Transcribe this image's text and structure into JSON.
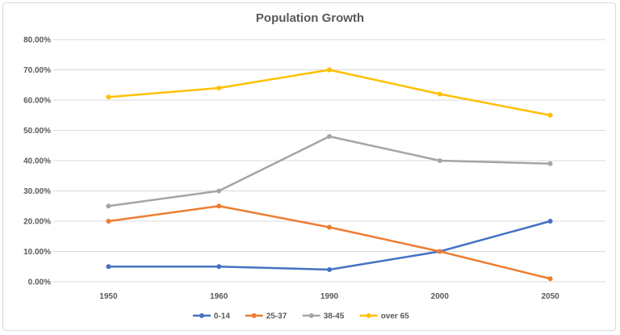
{
  "chart_data": {
    "type": "line",
    "title": "Population Growth",
    "categories": [
      "1950",
      "1960",
      "1990",
      "2000",
      "2050"
    ],
    "yticks": [
      "0.00%",
      "10.00%",
      "20.00%",
      "30.00%",
      "40.00%",
      "50.00%",
      "60.00%",
      "70.00%",
      "80.00%"
    ],
    "ylim": [
      0,
      80
    ],
    "grid": true,
    "legend_position": "bottom",
    "series": [
      {
        "name": "0-14",
        "color": "#4472C4",
        "values": [
          5,
          5,
          4,
          10,
          20
        ]
      },
      {
        "name": "25-37",
        "color": "#ED7D31",
        "values": [
          20,
          25,
          18,
          10,
          1
        ]
      },
      {
        "name": "38-45",
        "color": "#A5A5A5",
        "values": [
          25,
          30,
          48,
          40,
          39
        ]
      },
      {
        "name": "over 65",
        "color": "#FFC000",
        "values": [
          61,
          64,
          70,
          62,
          55
        ]
      }
    ]
  }
}
